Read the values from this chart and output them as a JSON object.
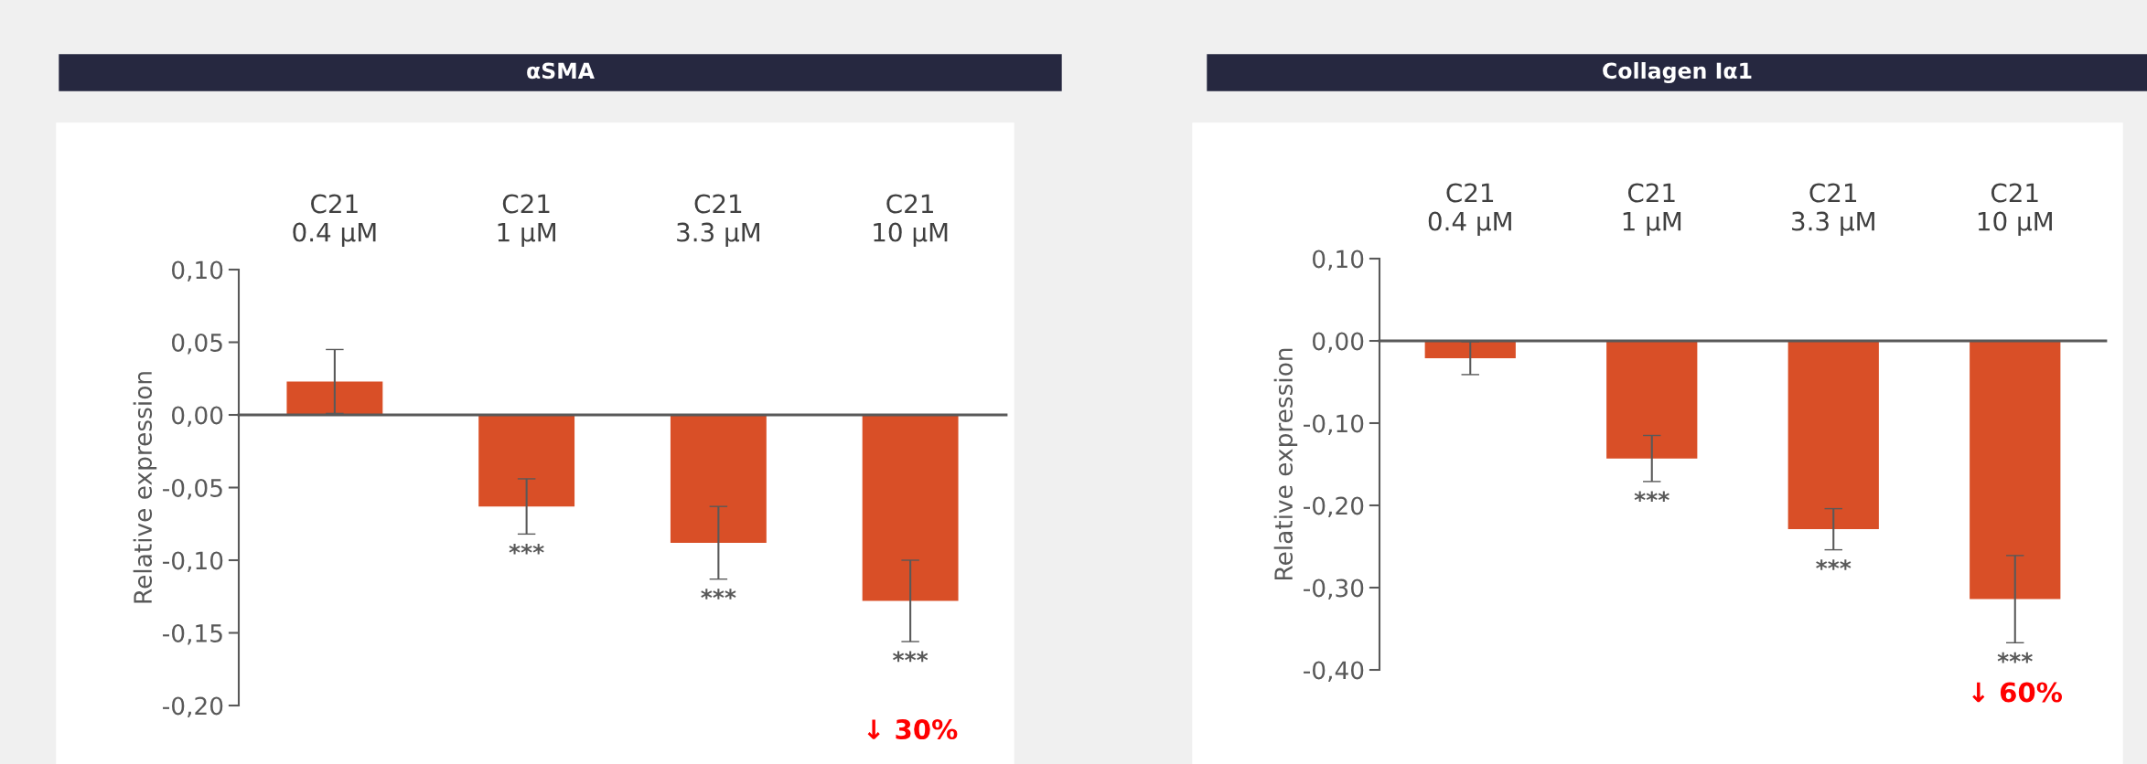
{
  "chart_data": [
    {
      "type": "bar",
      "title": "αSMA",
      "ylabel": "Relative expression",
      "categories": [
        "C21\n0.4 µM",
        "C21\n1 µM",
        "C21\n3.3 µM",
        "C21\n10 µM"
      ],
      "values": [
        0.023,
        -0.063,
        -0.088,
        -0.128
      ],
      "errors": [
        0.022,
        0.019,
        0.025,
        0.028
      ],
      "color": "#d94f27",
      "ylim": [
        -0.2,
        0.1
      ],
      "yticks": [
        {
          "value": -0.2,
          "label": "-0,20"
        },
        {
          "value": -0.15,
          "label": "-0,15"
        },
        {
          "value": -0.1,
          "label": "-0,10"
        },
        {
          "value": -0.05,
          "label": "-0,05"
        },
        {
          "value": 0,
          "label": "0,00"
        },
        {
          "value": 0.05,
          "label": "0,05"
        },
        {
          "value": 0.1,
          "label": "0,10"
        }
      ],
      "annotations": [
        "***",
        "***",
        "***",
        "↓ 30%"
      ]
    },
    {
      "type": "bar",
      "title": "Collagen Iα1",
      "ylabel": "Relative expression",
      "categories": [
        "C21\n0.4 µM",
        "C21\n1 µM",
        "C21\n3.3 µM",
        "C21\n10 µM"
      ],
      "values": [
        -0.021,
        -0.143,
        -0.229,
        -0.314
      ],
      "errors": [
        0.02,
        0.028,
        0.025,
        0.053
      ],
      "color": "#d94f27",
      "ylim": [
        -0.4,
        0.1
      ],
      "yticks": [
        {
          "value": -0.4,
          "label": "-0,40"
        },
        {
          "value": -0.3,
          "label": "-0,30"
        },
        {
          "value": -0.2,
          "label": "-0,20"
        },
        {
          "value": -0.1,
          "label": "-0,10"
        },
        {
          "value": 0,
          "label": "0,00"
        },
        {
          "value": 0.1,
          "label": "0,10"
        }
      ],
      "annotations": [
        "***",
        "***",
        "***",
        "↓ 60%"
      ]
    }
  ]
}
